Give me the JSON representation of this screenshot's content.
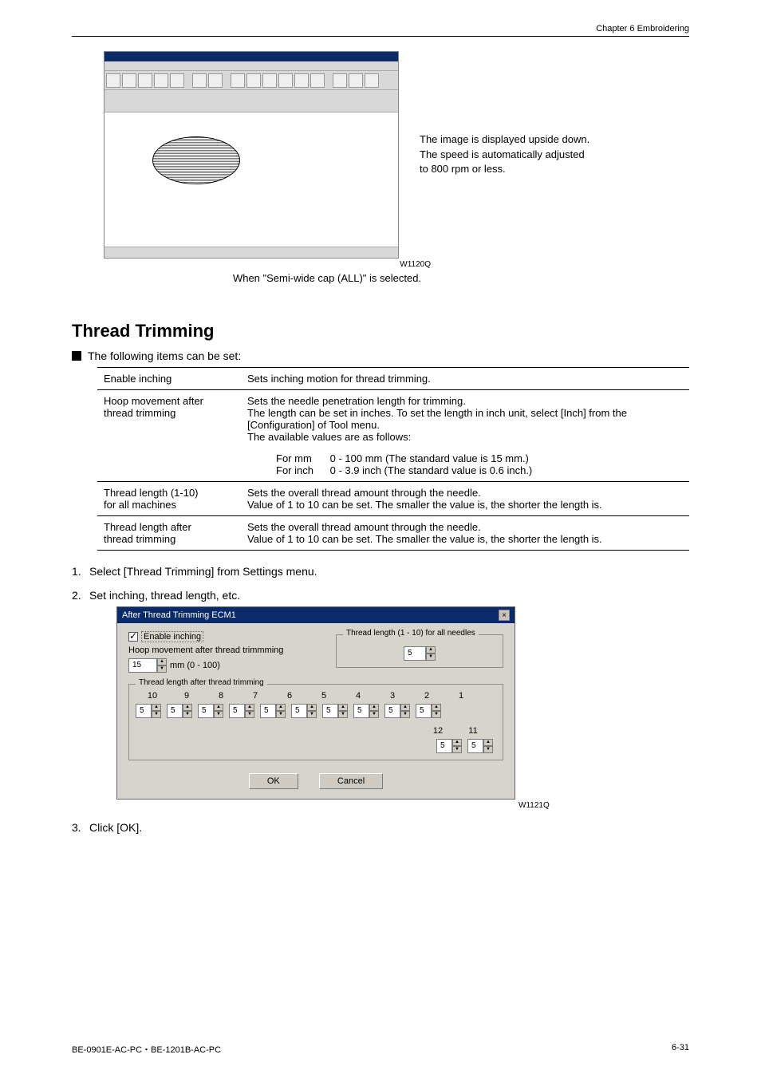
{
  "header": {
    "chapter": "Chapter 6    Embroidering"
  },
  "fig1": {
    "note_l1": "The image is displayed upside down.",
    "note_l2": "The speed is automatically adjusted",
    "note_l3": "to 800 rpm or less.",
    "code": "W1120Q",
    "caption": "When \"Semi-wide cap (ALL)\" is selected."
  },
  "section_title": "Thread Trimming",
  "bullet": "The following items can be set:",
  "table": {
    "r1c1": "Enable inching",
    "r1c2": "Sets inching motion for thread trimming.",
    "r2c1a": "Hoop movement after",
    "r2c1b": "thread trimming",
    "r2c2": "Sets the needle penetration length for trimming.\nThe length can be set in inches.    To set the length in inch unit, select [Inch] from the [Configuration] of Tool menu.\nThe available values are as follows:",
    "r2s1a": "For mm",
    "r2s1b": "0 - 100 mm (The standard value is 15 mm.)",
    "r2s2a": "For inch",
    "r2s2b": "0 - 3.9 inch (The standard value is 0.6 inch.)",
    "r3c1a": "Thread length (1-10)",
    "r3c1b": "for all machines",
    "r3c2": "Sets the overall thread amount through the needle.\nValue of 1 to 10 can be set.    The smaller the value is, the shorter the length is.",
    "r4c1a": "Thread length after",
    "r4c1b": "thread trimming",
    "r4c2": "Sets the overall thread amount through the needle.\nValue of 1 to 10 can be set.    The smaller the value is, the shorter the length is."
  },
  "steps": {
    "s1": "Select [Thread Trimming] from Settings menu.",
    "s2": "Set inching, thread length, etc.",
    "s3": "Click [OK]."
  },
  "dialog": {
    "title": "After Thread Trimming ECM1",
    "enable": "Enable inching",
    "hoop_label": "Hoop movement after thread trimmming",
    "hoop_value": "15",
    "hoop_unit": "mm (0 - 100)",
    "thread_all_group": "Thread length (1 - 10) for all needles",
    "thread_all_value": "5",
    "thread_after_group": "Thread length after thread trimming",
    "nums_top": [
      "10",
      "9",
      "8",
      "7",
      "6",
      "5",
      "4",
      "3",
      "2",
      "1"
    ],
    "nums_bot": [
      "12",
      "11"
    ],
    "spin_val": "5",
    "ok": "OK",
    "cancel": "Cancel",
    "code": "W1121Q"
  },
  "footer": {
    "left": "BE-0901E-AC-PC・BE-1201B-AC-PC",
    "right": "6-31"
  }
}
